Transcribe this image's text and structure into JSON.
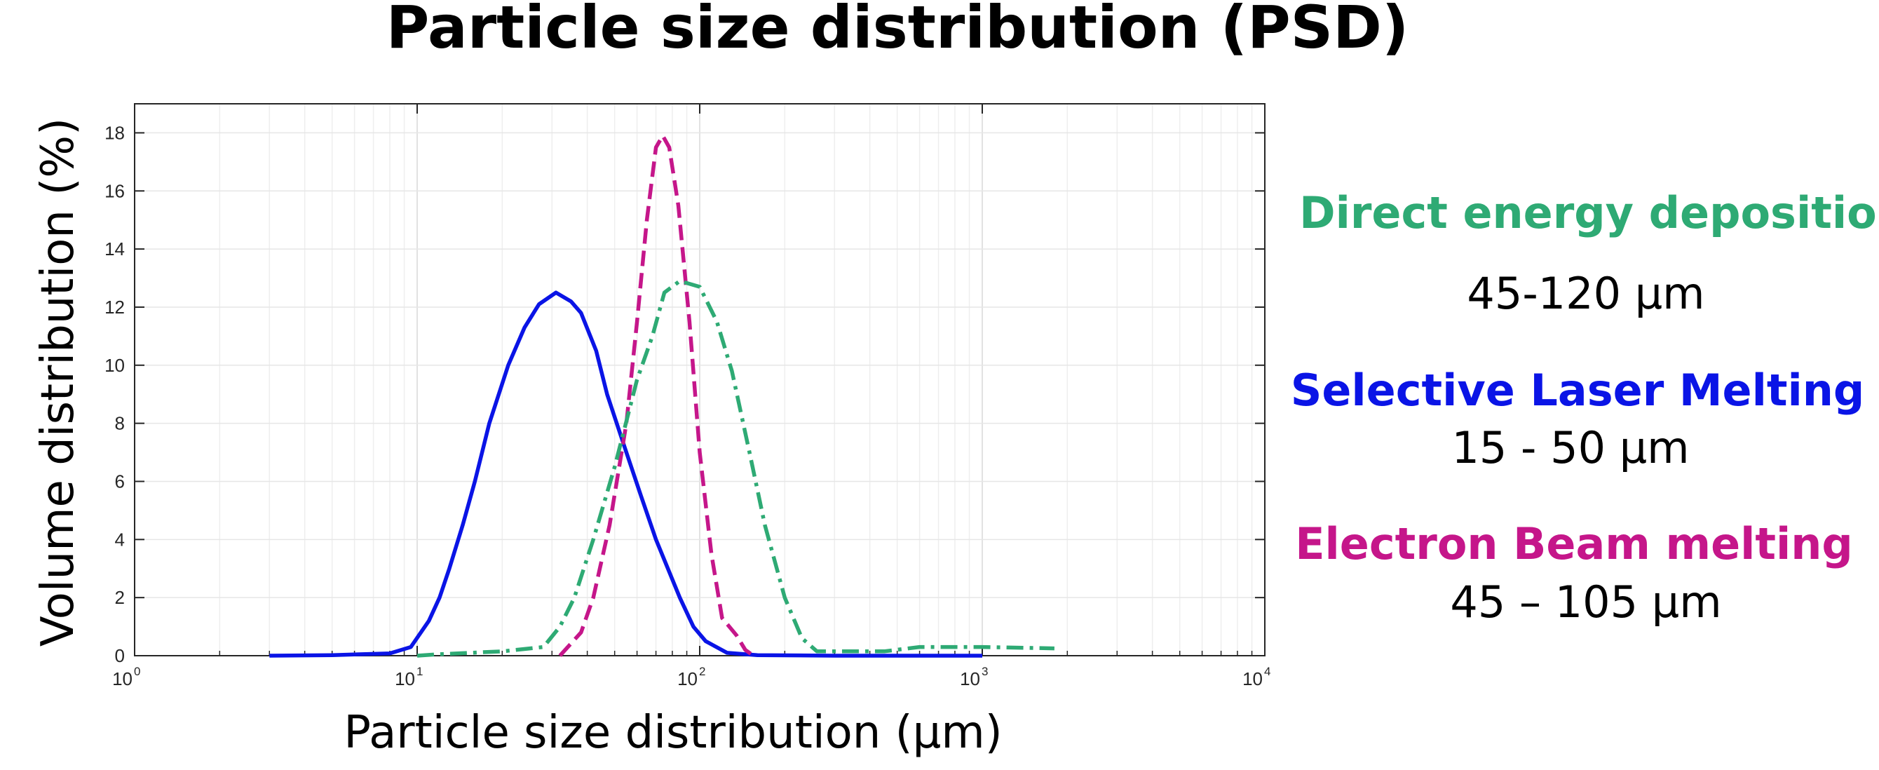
{
  "chart_data": {
    "type": "line",
    "title": "Particle size distribution (PSD)",
    "xlabel": "Particle size distribution (µm)",
    "ylabel": "Volume distribution (%)",
    "xscale": "log",
    "xlim": [
      1,
      10000
    ],
    "ylim": [
      0,
      19
    ],
    "grid": true,
    "x_tick_labels": [
      {
        "base": "10",
        "exp": "0"
      },
      {
        "base": "10",
        "exp": "1"
      },
      {
        "base": "10",
        "exp": "2"
      },
      {
        "base": "10",
        "exp": "3"
      },
      {
        "base": "10",
        "exp": "4"
      }
    ],
    "x_tick_values": [
      1,
      10,
      100,
      1000,
      10000
    ],
    "y_ticks": [
      0,
      2,
      4,
      6,
      8,
      10,
      12,
      14,
      16,
      18
    ],
    "legend_placement": "right",
    "series": [
      {
        "name": "Selective Laser Melting",
        "range": "15 - 50 µm",
        "color": "#0a14e6",
        "style": "solid",
        "points": [
          [
            3,
            0
          ],
          [
            5,
            0.02
          ],
          [
            8,
            0.08
          ],
          [
            9.5,
            0.3
          ],
          [
            11,
            1.2
          ],
          [
            12,
            2
          ],
          [
            13,
            3
          ],
          [
            14.5,
            4.5
          ],
          [
            16,
            6
          ],
          [
            18,
            8
          ],
          [
            21,
            10
          ],
          [
            24,
            11.3
          ],
          [
            27,
            12.1
          ],
          [
            31,
            12.5
          ],
          [
            35,
            12.2
          ],
          [
            38,
            11.8
          ],
          [
            43,
            10.5
          ],
          [
            47,
            9
          ],
          [
            55,
            7
          ],
          [
            62,
            5.5
          ],
          [
            70,
            4
          ],
          [
            85,
            2
          ],
          [
            95,
            1
          ],
          [
            105,
            0.5
          ],
          [
            125,
            0.1
          ],
          [
            160,
            0.02
          ],
          [
            300,
            0
          ],
          [
            1000,
            0
          ]
        ]
      },
      {
        "name": "Electron Beam melting",
        "range": "45 – 105 µm",
        "color": "#c5168a",
        "style": "dashed",
        "points": [
          [
            32,
            0
          ],
          [
            38,
            0.8
          ],
          [
            42,
            2
          ],
          [
            48,
            4.5
          ],
          [
            55,
            8
          ],
          [
            60,
            11.5
          ],
          [
            65,
            15
          ],
          [
            70,
            17.5
          ],
          [
            74,
            17.9
          ],
          [
            78,
            17.5
          ],
          [
            84,
            15.5
          ],
          [
            92,
            11.5
          ],
          [
            100,
            7
          ],
          [
            110,
            3.5
          ],
          [
            120,
            1.3
          ],
          [
            135,
            0.7
          ],
          [
            145,
            0.2
          ],
          [
            155,
            0
          ]
        ]
      },
      {
        "name": "Direct energy deposition",
        "range": "45-120 µm",
        "color": "#2eaa74",
        "style": "dashdot",
        "points": [
          [
            10,
            0
          ],
          [
            12,
            0.05
          ],
          [
            20,
            0.15
          ],
          [
            28,
            0.3
          ],
          [
            32,
            1
          ],
          [
            36,
            2
          ],
          [
            42,
            4
          ],
          [
            50,
            6.5
          ],
          [
            60,
            9.5
          ],
          [
            68,
            11
          ],
          [
            75,
            12.5
          ],
          [
            85,
            12.9
          ],
          [
            100,
            12.7
          ],
          [
            115,
            11.5
          ],
          [
            130,
            9.8
          ],
          [
            150,
            7
          ],
          [
            170,
            4.5
          ],
          [
            200,
            2
          ],
          [
            230,
            0.6
          ],
          [
            260,
            0.15
          ],
          [
            300,
            0.15
          ],
          [
            450,
            0.15
          ],
          [
            600,
            0.3
          ],
          [
            1000,
            0.3
          ],
          [
            1800,
            0.25
          ]
        ]
      }
    ]
  }
}
